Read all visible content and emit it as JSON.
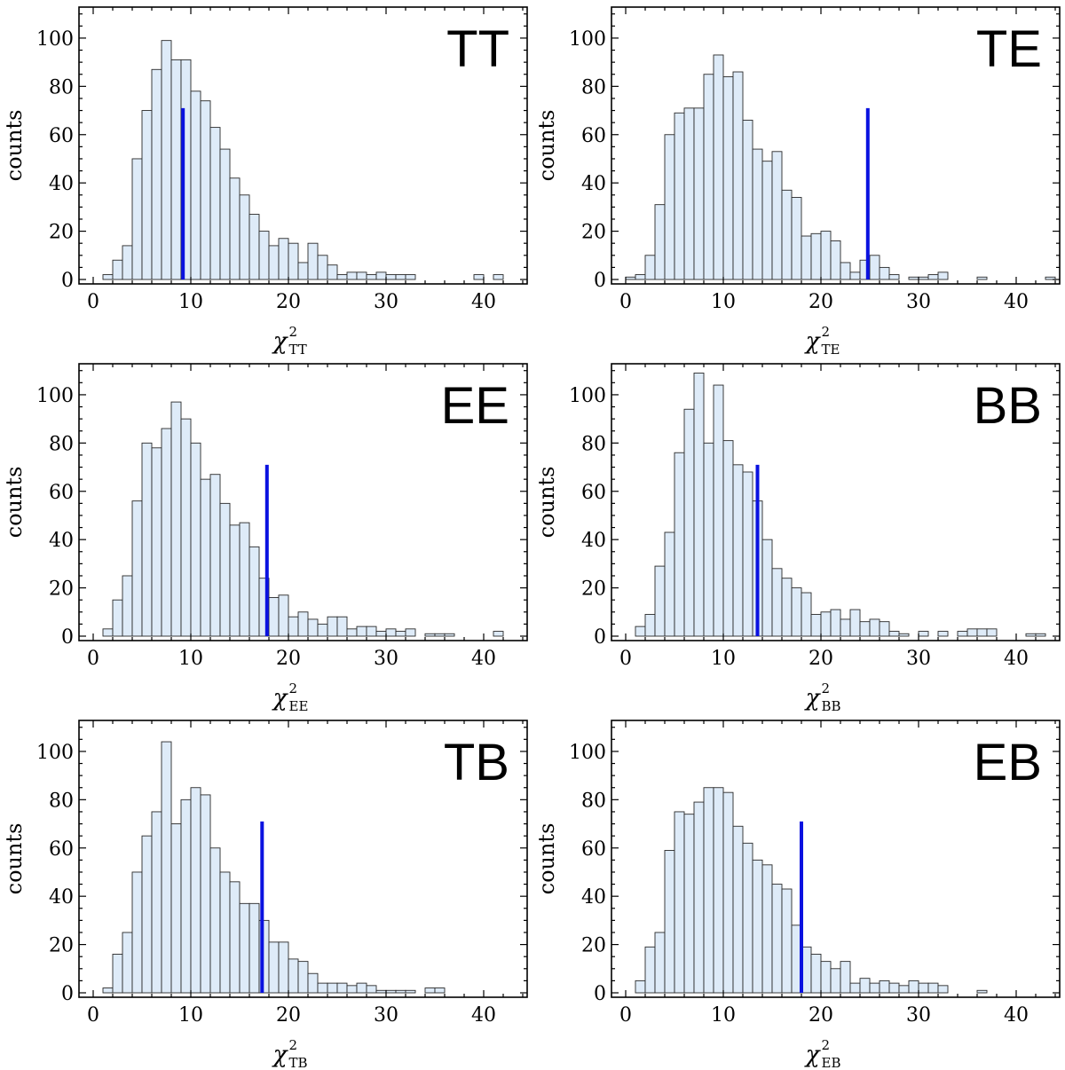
{
  "chart_data": [
    {
      "type": "bar",
      "title": "TT",
      "xlabel_symbol": "χ",
      "xlabel_sup": "2",
      "xlabel_sub": "TT",
      "ylabel": "counts",
      "xlim": [
        -1,
        44
      ],
      "ylim": [
        0,
        111
      ],
      "xticks": [
        0,
        10,
        20,
        30,
        40
      ],
      "yticks": [
        0,
        20,
        40,
        60,
        80,
        100
      ],
      "bin_width": 1,
      "bins": [
        {
          "x0": 1,
          "count": 2
        },
        {
          "x0": 2,
          "count": 8
        },
        {
          "x0": 3,
          "count": 14
        },
        {
          "x0": 4,
          "count": 50
        },
        {
          "x0": 5,
          "count": 70
        },
        {
          "x0": 6,
          "count": 87
        },
        {
          "x0": 7,
          "count": 99
        },
        {
          "x0": 8,
          "count": 91
        },
        {
          "x0": 9,
          "count": 91
        },
        {
          "x0": 10,
          "count": 78
        },
        {
          "x0": 11,
          "count": 74
        },
        {
          "x0": 12,
          "count": 63
        },
        {
          "x0": 13,
          "count": 54
        },
        {
          "x0": 14,
          "count": 42
        },
        {
          "x0": 15,
          "count": 35
        },
        {
          "x0": 16,
          "count": 27
        },
        {
          "x0": 17,
          "count": 20
        },
        {
          "x0": 18,
          "count": 14
        },
        {
          "x0": 19,
          "count": 17
        },
        {
          "x0": 20,
          "count": 15
        },
        {
          "x0": 21,
          "count": 7
        },
        {
          "x0": 22,
          "count": 15
        },
        {
          "x0": 23,
          "count": 10
        },
        {
          "x0": 24,
          "count": 6
        },
        {
          "x0": 25,
          "count": 2
        },
        {
          "x0": 26,
          "count": 3
        },
        {
          "x0": 27,
          "count": 3
        },
        {
          "x0": 28,
          "count": 2
        },
        {
          "x0": 29,
          "count": 3
        },
        {
          "x0": 30,
          "count": 2
        },
        {
          "x0": 31,
          "count": 2
        },
        {
          "x0": 32,
          "count": 2
        },
        {
          "x0": 39,
          "count": 2
        },
        {
          "x0": 41,
          "count": 2
        }
      ],
      "observed": 9.2,
      "observed_line_height": 71,
      "marker_color": "#0a12e0",
      "bar_color": "#deebf8"
    },
    {
      "type": "bar",
      "title": "TE",
      "xlabel_symbol": "χ",
      "xlabel_sup": "2",
      "xlabel_sub": "TE",
      "ylabel": "counts",
      "xlim": [
        -1,
        44
      ],
      "ylim": [
        0,
        111
      ],
      "xticks": [
        0,
        10,
        20,
        30,
        40
      ],
      "yticks": [
        0,
        20,
        40,
        60,
        80,
        100
      ],
      "bin_width": 1,
      "bins": [
        {
          "x0": 0,
          "count": 1
        },
        {
          "x0": 1,
          "count": 2
        },
        {
          "x0": 2,
          "count": 10
        },
        {
          "x0": 3,
          "count": 31
        },
        {
          "x0": 4,
          "count": 60
        },
        {
          "x0": 5,
          "count": 69
        },
        {
          "x0": 6,
          "count": 71
        },
        {
          "x0": 7,
          "count": 71
        },
        {
          "x0": 8,
          "count": 85
        },
        {
          "x0": 9,
          "count": 93
        },
        {
          "x0": 10,
          "count": 84
        },
        {
          "x0": 11,
          "count": 86
        },
        {
          "x0": 12,
          "count": 66
        },
        {
          "x0": 13,
          "count": 54
        },
        {
          "x0": 14,
          "count": 49
        },
        {
          "x0": 15,
          "count": 53
        },
        {
          "x0": 16,
          "count": 37
        },
        {
          "x0": 17,
          "count": 34
        },
        {
          "x0": 18,
          "count": 18
        },
        {
          "x0": 19,
          "count": 19
        },
        {
          "x0": 20,
          "count": 20
        },
        {
          "x0": 21,
          "count": 16
        },
        {
          "x0": 22,
          "count": 7
        },
        {
          "x0": 23,
          "count": 3
        },
        {
          "x0": 24,
          "count": 8
        },
        {
          "x0": 25,
          "count": 10
        },
        {
          "x0": 26,
          "count": 5
        },
        {
          "x0": 27,
          "count": 2
        },
        {
          "x0": 29,
          "count": 1
        },
        {
          "x0": 30,
          "count": 1
        },
        {
          "x0": 31,
          "count": 2
        },
        {
          "x0": 32,
          "count": 3
        },
        {
          "x0": 36,
          "count": 1
        },
        {
          "x0": 43,
          "count": 1
        }
      ],
      "observed": 24.8,
      "observed_line_height": 71,
      "marker_color": "#0a12e0",
      "bar_color": "#deebf8"
    },
    {
      "type": "bar",
      "title": "EE",
      "xlabel_symbol": "χ",
      "xlabel_sup": "2",
      "xlabel_sub": "EE",
      "ylabel": "counts",
      "xlim": [
        -1,
        44
      ],
      "ylim": [
        0,
        111
      ],
      "xticks": [
        0,
        10,
        20,
        30,
        40
      ],
      "yticks": [
        0,
        20,
        40,
        60,
        80,
        100
      ],
      "bin_width": 1,
      "bins": [
        {
          "x0": 1,
          "count": 3
        },
        {
          "x0": 2,
          "count": 15
        },
        {
          "x0": 3,
          "count": 25
        },
        {
          "x0": 4,
          "count": 56
        },
        {
          "x0": 5,
          "count": 80
        },
        {
          "x0": 6,
          "count": 78
        },
        {
          "x0": 7,
          "count": 86
        },
        {
          "x0": 8,
          "count": 97
        },
        {
          "x0": 9,
          "count": 90
        },
        {
          "x0": 10,
          "count": 80
        },
        {
          "x0": 11,
          "count": 65
        },
        {
          "x0": 12,
          "count": 67
        },
        {
          "x0": 13,
          "count": 55
        },
        {
          "x0": 14,
          "count": 46
        },
        {
          "x0": 15,
          "count": 47
        },
        {
          "x0": 16,
          "count": 37
        },
        {
          "x0": 17,
          "count": 24
        },
        {
          "x0": 18,
          "count": 16
        },
        {
          "x0": 19,
          "count": 17
        },
        {
          "x0": 20,
          "count": 8
        },
        {
          "x0": 21,
          "count": 10
        },
        {
          "x0": 22,
          "count": 7
        },
        {
          "x0": 23,
          "count": 5
        },
        {
          "x0": 24,
          "count": 8
        },
        {
          "x0": 25,
          "count": 8
        },
        {
          "x0": 26,
          "count": 3
        },
        {
          "x0": 27,
          "count": 4
        },
        {
          "x0": 28,
          "count": 4
        },
        {
          "x0": 29,
          "count": 2
        },
        {
          "x0": 30,
          "count": 3
        },
        {
          "x0": 31,
          "count": 2
        },
        {
          "x0": 32,
          "count": 3
        },
        {
          "x0": 34,
          "count": 1
        },
        {
          "x0": 35,
          "count": 1
        },
        {
          "x0": 36,
          "count": 1
        },
        {
          "x0": 41,
          "count": 2
        }
      ],
      "observed": 17.8,
      "observed_line_height": 71,
      "marker_color": "#0a12e0",
      "bar_color": "#deebf8"
    },
    {
      "type": "bar",
      "title": "BB",
      "xlabel_symbol": "χ",
      "xlabel_sup": "2",
      "xlabel_sub": "BB",
      "ylabel": "counts",
      "xlim": [
        -1,
        44
      ],
      "ylim": [
        0,
        111
      ],
      "xticks": [
        0,
        10,
        20,
        30,
        40
      ],
      "yticks": [
        0,
        20,
        40,
        60,
        80,
        100
      ],
      "bin_width": 1,
      "bins": [
        {
          "x0": 1,
          "count": 4
        },
        {
          "x0": 2,
          "count": 9
        },
        {
          "x0": 3,
          "count": 29
        },
        {
          "x0": 4,
          "count": 43
        },
        {
          "x0": 5,
          "count": 76
        },
        {
          "x0": 6,
          "count": 94
        },
        {
          "x0": 7,
          "count": 109
        },
        {
          "x0": 8,
          "count": 80
        },
        {
          "x0": 9,
          "count": 104
        },
        {
          "x0": 10,
          "count": 81
        },
        {
          "x0": 11,
          "count": 71
        },
        {
          "x0": 12,
          "count": 68
        },
        {
          "x0": 13,
          "count": 56
        },
        {
          "x0": 14,
          "count": 40
        },
        {
          "x0": 15,
          "count": 28
        },
        {
          "x0": 16,
          "count": 24
        },
        {
          "x0": 17,
          "count": 20
        },
        {
          "x0": 18,
          "count": 18
        },
        {
          "x0": 19,
          "count": 9
        },
        {
          "x0": 20,
          "count": 10
        },
        {
          "x0": 21,
          "count": 11
        },
        {
          "x0": 22,
          "count": 7
        },
        {
          "x0": 23,
          "count": 11
        },
        {
          "x0": 24,
          "count": 6
        },
        {
          "x0": 25,
          "count": 7
        },
        {
          "x0": 26,
          "count": 6
        },
        {
          "x0": 27,
          "count": 2
        },
        {
          "x0": 28,
          "count": 1
        },
        {
          "x0": 30,
          "count": 2
        },
        {
          "x0": 32,
          "count": 2
        },
        {
          "x0": 34,
          "count": 2
        },
        {
          "x0": 35,
          "count": 3
        },
        {
          "x0": 36,
          "count": 3
        },
        {
          "x0": 37,
          "count": 3
        },
        {
          "x0": 41,
          "count": 1
        },
        {
          "x0": 42,
          "count": 1
        }
      ],
      "observed": 13.5,
      "observed_line_height": 71,
      "marker_color": "#0a12e0",
      "bar_color": "#deebf8"
    },
    {
      "type": "bar",
      "title": "TB",
      "xlabel_symbol": "χ",
      "xlabel_sup": "2",
      "xlabel_sub": "TB",
      "ylabel": "counts",
      "xlim": [
        -1,
        44
      ],
      "ylim": [
        0,
        111
      ],
      "xticks": [
        0,
        10,
        20,
        30,
        40
      ],
      "yticks": [
        0,
        20,
        40,
        60,
        80,
        100
      ],
      "bin_width": 1,
      "bins": [
        {
          "x0": 1,
          "count": 2
        },
        {
          "x0": 2,
          "count": 16
        },
        {
          "x0": 3,
          "count": 25
        },
        {
          "x0": 4,
          "count": 50
        },
        {
          "x0": 5,
          "count": 65
        },
        {
          "x0": 6,
          "count": 75
        },
        {
          "x0": 7,
          "count": 104
        },
        {
          "x0": 8,
          "count": 70
        },
        {
          "x0": 9,
          "count": 80
        },
        {
          "x0": 10,
          "count": 85
        },
        {
          "x0": 11,
          "count": 82
        },
        {
          "x0": 12,
          "count": 60
        },
        {
          "x0": 13,
          "count": 50
        },
        {
          "x0": 14,
          "count": 46
        },
        {
          "x0": 15,
          "count": 37
        },
        {
          "x0": 16,
          "count": 37
        },
        {
          "x0": 17,
          "count": 30
        },
        {
          "x0": 18,
          "count": 21
        },
        {
          "x0": 19,
          "count": 21
        },
        {
          "x0": 20,
          "count": 14
        },
        {
          "x0": 21,
          "count": 13
        },
        {
          "x0": 22,
          "count": 8
        },
        {
          "x0": 23,
          "count": 4
        },
        {
          "x0": 24,
          "count": 4
        },
        {
          "x0": 25,
          "count": 4
        },
        {
          "x0": 26,
          "count": 3
        },
        {
          "x0": 27,
          "count": 4
        },
        {
          "x0": 28,
          "count": 3
        },
        {
          "x0": 29,
          "count": 1
        },
        {
          "x0": 30,
          "count": 1
        },
        {
          "x0": 31,
          "count": 1
        },
        {
          "x0": 32,
          "count": 1
        },
        {
          "x0": 34,
          "count": 2
        },
        {
          "x0": 35,
          "count": 2
        }
      ],
      "observed": 17.3,
      "observed_line_height": 71,
      "marker_color": "#0a12e0",
      "bar_color": "#deebf8"
    },
    {
      "type": "bar",
      "title": "EB",
      "xlabel_symbol": "χ",
      "xlabel_sup": "2",
      "xlabel_sub": "EB",
      "ylabel": "counts",
      "xlim": [
        -1,
        44
      ],
      "ylim": [
        0,
        111
      ],
      "xticks": [
        0,
        10,
        20,
        30,
        40
      ],
      "yticks": [
        0,
        20,
        40,
        60,
        80,
        100
      ],
      "bin_width": 1,
      "bins": [
        {
          "x0": 1,
          "count": 5
        },
        {
          "x0": 2,
          "count": 19
        },
        {
          "x0": 3,
          "count": 25
        },
        {
          "x0": 4,
          "count": 59
        },
        {
          "x0": 5,
          "count": 75
        },
        {
          "x0": 6,
          "count": 74
        },
        {
          "x0": 7,
          "count": 79
        },
        {
          "x0": 8,
          "count": 85
        },
        {
          "x0": 9,
          "count": 85
        },
        {
          "x0": 10,
          "count": 83
        },
        {
          "x0": 11,
          "count": 69
        },
        {
          "x0": 12,
          "count": 62
        },
        {
          "x0": 13,
          "count": 55
        },
        {
          "x0": 14,
          "count": 53
        },
        {
          "x0": 15,
          "count": 45
        },
        {
          "x0": 16,
          "count": 43
        },
        {
          "x0": 17,
          "count": 28
        },
        {
          "x0": 18,
          "count": 19
        },
        {
          "x0": 19,
          "count": 16
        },
        {
          "x0": 20,
          "count": 13
        },
        {
          "x0": 21,
          "count": 10
        },
        {
          "x0": 22,
          "count": 13
        },
        {
          "x0": 23,
          "count": 4
        },
        {
          "x0": 24,
          "count": 6
        },
        {
          "x0": 25,
          "count": 4
        },
        {
          "x0": 26,
          "count": 5
        },
        {
          "x0": 27,
          "count": 4
        },
        {
          "x0": 28,
          "count": 3
        },
        {
          "x0": 29,
          "count": 5
        },
        {
          "x0": 30,
          "count": 4
        },
        {
          "x0": 31,
          "count": 4
        },
        {
          "x0": 32,
          "count": 3
        },
        {
          "x0": 36,
          "count": 1
        }
      ],
      "observed": 18.0,
      "observed_line_height": 71,
      "marker_color": "#0a12e0",
      "bar_color": "#deebf8"
    }
  ]
}
